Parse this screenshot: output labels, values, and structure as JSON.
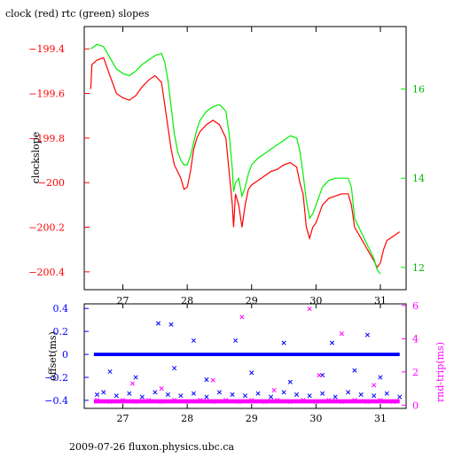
{
  "page": {
    "title": "clock (red) rtc (green) slopes",
    "footer": "2009-07-26 fluxon.physics.ubc.ca"
  },
  "colors": {
    "red": "#ff0000",
    "green": "#00ee00",
    "blue": "#0000ff",
    "magenta": "#ff00ff",
    "axis": "#000000"
  },
  "chart_data": [
    {
      "type": "line",
      "title": "clock (red) rtc (green) slopes",
      "ylabel": "clockslope",
      "xlim": [
        26.4,
        31.4
      ],
      "ylim_left": [
        -200.48,
        -199.3
      ],
      "ylim_right": [
        11.5,
        17.4
      ],
      "x_ticks": [
        27,
        28,
        29,
        30,
        31
      ],
      "y_ticks_left": [
        -199.4,
        -199.6,
        -199.8,
        -200,
        -200.2,
        -200.4
      ],
      "y_ticks_right": [
        12,
        14,
        16
      ],
      "series": [
        {
          "name": "clock (red)",
          "axis": "left",
          "x": [
            26.5,
            26.52,
            26.6,
            26.7,
            26.8,
            26.9,
            27.0,
            27.1,
            27.2,
            27.3,
            27.4,
            27.5,
            27.6,
            27.65,
            27.7,
            27.75,
            27.8,
            27.85,
            27.9,
            27.95,
            28.0,
            28.05,
            28.1,
            28.15,
            28.2,
            28.3,
            28.4,
            28.5,
            28.6,
            28.65,
            28.7,
            28.72,
            28.75,
            28.8,
            28.85,
            28.9,
            28.95,
            29.0,
            29.1,
            29.2,
            29.3,
            29.4,
            29.5,
            29.6,
            29.7,
            29.75,
            29.8,
            29.85,
            29.9,
            29.95,
            30.0,
            30.05,
            30.1,
            30.2,
            30.3,
            30.4,
            30.5,
            30.55,
            30.6,
            30.7,
            30.8,
            30.9,
            30.95,
            31.0,
            31.05,
            31.1,
            31.2,
            31.3
          ],
          "y": [
            -199.58,
            -199.47,
            -199.45,
            -199.44,
            -199.52,
            -199.6,
            -199.62,
            -199.63,
            -199.61,
            -199.57,
            -199.54,
            -199.52,
            -199.55,
            -199.65,
            -199.75,
            -199.85,
            -199.92,
            -199.95,
            -199.98,
            -200.03,
            -200.02,
            -199.95,
            -199.85,
            -199.8,
            -199.77,
            -199.74,
            -199.72,
            -199.74,
            -199.8,
            -199.95,
            -200.1,
            -200.2,
            -200.05,
            -200.1,
            -200.2,
            -200.1,
            -200.03,
            -200.01,
            -199.99,
            -199.97,
            -199.95,
            -199.94,
            -199.92,
            -199.91,
            -199.93,
            -200.0,
            -200.05,
            -200.2,
            -200.25,
            -200.2,
            -200.18,
            -200.14,
            -200.1,
            -200.07,
            -200.06,
            -200.05,
            -200.05,
            -200.1,
            -200.2,
            -200.25,
            -200.3,
            -200.35,
            -200.38,
            -200.36,
            -200.3,
            -200.26,
            -200.24,
            -200.22
          ]
        },
        {
          "name": "rtc (green)",
          "axis": "right",
          "x": [
            26.5,
            26.6,
            26.7,
            26.8,
            26.9,
            27.0,
            27.1,
            27.2,
            27.3,
            27.4,
            27.5,
            27.6,
            27.65,
            27.7,
            27.75,
            27.8,
            27.85,
            27.9,
            27.95,
            28.0,
            28.05,
            28.1,
            28.15,
            28.2,
            28.3,
            28.4,
            28.5,
            28.6,
            28.65,
            28.7,
            28.72,
            28.75,
            28.8,
            28.85,
            28.9,
            28.95,
            29.0,
            29.1,
            29.2,
            29.3,
            29.4,
            29.5,
            29.6,
            29.7,
            29.75,
            29.8,
            29.85,
            29.9,
            29.95,
            30.0,
            30.05,
            30.1,
            30.2,
            30.3,
            30.4,
            30.5,
            30.55,
            30.6,
            30.7,
            30.8,
            30.9,
            30.95,
            31.0
          ],
          "y": [
            16.9,
            17.0,
            16.95,
            16.7,
            16.45,
            16.35,
            16.3,
            16.4,
            16.55,
            16.65,
            16.75,
            16.8,
            16.6,
            16.2,
            15.6,
            15.0,
            14.6,
            14.4,
            14.3,
            14.3,
            14.5,
            14.8,
            15.1,
            15.3,
            15.5,
            15.6,
            15.65,
            15.5,
            15.0,
            14.2,
            13.7,
            13.9,
            14.0,
            13.6,
            13.8,
            14.1,
            14.3,
            14.45,
            14.55,
            14.65,
            14.75,
            14.85,
            14.95,
            14.9,
            14.6,
            14.1,
            13.5,
            13.1,
            13.2,
            13.4,
            13.6,
            13.8,
            13.95,
            14.0,
            14.0,
            14.0,
            13.8,
            13.1,
            12.8,
            12.5,
            12.2,
            11.95,
            11.85
          ]
        }
      ]
    },
    {
      "type": "scatter",
      "ylabel_left": "offset(ms)",
      "ylabel_right": "rnd-trip(ms)",
      "xlim": [
        26.4,
        31.4
      ],
      "ylim_left": [
        -0.47,
        0.44
      ],
      "ylim_right": [
        -0.2,
        6.1
      ],
      "x_ticks": [
        27,
        28,
        29,
        30,
        31
      ],
      "y_ticks_left": [
        0.4,
        0.2,
        0,
        -0.2,
        -0.4
      ],
      "y_ticks_right": [
        0,
        2,
        4,
        6
      ],
      "series": [
        {
          "name": "offset",
          "axis": "left",
          "x": [
            26.6,
            26.7,
            26.9,
            27.1,
            27.3,
            27.5,
            27.7,
            27.9,
            28.1,
            28.3,
            28.5,
            28.7,
            28.9,
            29.1,
            29.3,
            29.5,
            29.7,
            29.9,
            30.1,
            30.3,
            30.5,
            30.7,
            30.9,
            31.1,
            31.3,
            27.55,
            27.75,
            28.1,
            28.75,
            29.5,
            30.25,
            30.8,
            26.8,
            27.2,
            27.8,
            28.3,
            29.0,
            29.6,
            30.1,
            30.6,
            31.0
          ],
          "y": [
            -0.35,
            -0.33,
            -0.36,
            -0.34,
            -0.37,
            -0.33,
            -0.35,
            -0.36,
            -0.34,
            -0.37,
            -0.33,
            -0.35,
            -0.36,
            -0.34,
            -0.37,
            -0.33,
            -0.35,
            -0.36,
            -0.34,
            -0.37,
            -0.33,
            -0.35,
            -0.36,
            -0.34,
            -0.37,
            0.27,
            0.26,
            0.12,
            0.12,
            0.1,
            0.1,
            0.17,
            -0.15,
            -0.2,
            -0.12,
            -0.22,
            -0.16,
            -0.24,
            -0.18,
            -0.14,
            -0.2
          ]
        },
        {
          "name": "rnd-trip",
          "axis": "right",
          "x": [
            26.6,
            26.8,
            27.0,
            27.2,
            27.4,
            27.6,
            27.8,
            28.0,
            28.2,
            28.4,
            28.6,
            28.8,
            29.0,
            29.2,
            29.4,
            29.6,
            29.8,
            30.0,
            30.2,
            30.4,
            30.6,
            30.8,
            31.0,
            31.2,
            28.85,
            29.9,
            30.4,
            27.15,
            27.6,
            28.4,
            29.35,
            30.05,
            30.9
          ],
          "y": [
            0.3,
            0.2,
            0.3,
            0.2,
            0.3,
            0.2,
            0.3,
            0.2,
            0.3,
            0.2,
            0.3,
            0.2,
            0.3,
            0.2,
            0.3,
            0.2,
            0.3,
            0.2,
            0.3,
            0.2,
            0.3,
            0.2,
            0.3,
            0.2,
            5.3,
            5.8,
            4.3,
            1.3,
            1.0,
            1.5,
            0.9,
            1.8,
            1.2
          ]
        }
      ]
    }
  ]
}
